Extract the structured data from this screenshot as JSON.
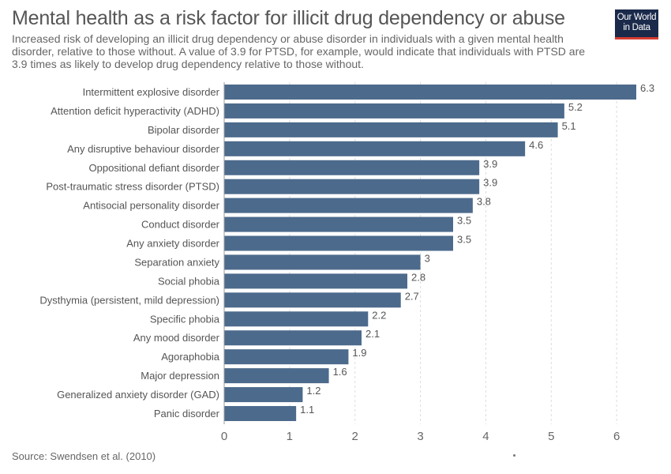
{
  "header": {
    "title": "Mental health as a risk factor for illicit drug dependency or abuse",
    "subtitle": "Increased risk of developing an illicit drug dependency or abuse disorder in individuals with a given mental health disorder, relative to those without. A value of 3.9 for PTSD, for example, would indicate that individuals with PTSD are 3.9 times as likely to develop drug dependency relative to those without."
  },
  "logo": {
    "line1": "Our World",
    "line2": "in Data"
  },
  "footer": {
    "source": "Source: Swendsen et al. (2010)"
  },
  "colors": {
    "bar": "#4c6a8c",
    "grid": "#dddddd",
    "logo_bg": "#1b2a4a",
    "logo_accent": "#d73c32"
  },
  "chart_data": {
    "type": "bar",
    "orientation": "horizontal",
    "categories": [
      "Intermittent explosive disorder",
      "Attention deficit hyperactivity (ADHD)",
      "Bipolar disorder",
      "Any disruptive behaviour disorder",
      "Oppositional defiant disorder",
      "Post-traumatic stress disorder (PTSD)",
      "Antisocial personality disorder",
      "Conduct disorder",
      "Any anxiety disorder",
      "Separation anxiety",
      "Social phobia",
      "Dysthymia (persistent, mild depression)",
      "Specific phobia",
      "Any mood disorder",
      "Agoraphobia",
      "Major depression",
      "Generalized anxiety disorder (GAD)",
      "Panic disorder"
    ],
    "values": [
      6.3,
      5.2,
      5.1,
      4.6,
      3.9,
      3.9,
      3.8,
      3.5,
      3.5,
      3,
      2.8,
      2.7,
      2.2,
      2.1,
      1.9,
      1.6,
      1.2,
      1.1
    ],
    "value_labels": [
      "6.3",
      "5.2",
      "5.1",
      "4.6",
      "3.9",
      "3.9",
      "3.8",
      "3.5",
      "3.5",
      "3",
      "2.8",
      "2.7",
      "2.2",
      "2.1",
      "1.9",
      "1.6",
      "1.2",
      "1.1"
    ],
    "xticks": [
      0,
      1,
      2,
      3,
      4,
      5,
      6
    ],
    "xlim": [
      0,
      6.3
    ],
    "grid": true,
    "xlabel": "",
    "ylabel": ""
  }
}
